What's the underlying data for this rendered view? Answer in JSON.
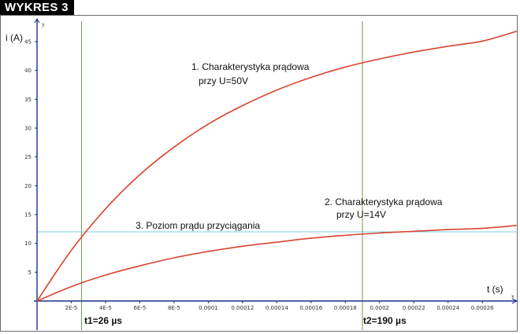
{
  "badge": "WYKRES 3",
  "chart_data": {
    "type": "line",
    "ylabel": "i (A)",
    "xlabel": "t (s)",
    "x_axis_name": "x",
    "y_axis_name": "y",
    "xlim": [
      0,
      0.000282
    ],
    "ylim": [
      0,
      48
    ],
    "grid": false,
    "x_ticks": [
      2e-05,
      4e-05,
      6e-05,
      8e-05,
      0.0001,
      0.00012,
      0.00014,
      0.00016,
      0.00018,
      0.0002,
      0.00022,
      0.00024,
      0.00026
    ],
    "x_tick_labels": [
      "2E-5",
      "4E-5",
      "6E-5",
      "8E-5",
      "0.0001",
      "0.00012",
      "0.00014",
      "0.00016",
      "0.00018",
      "0.0002",
      "0.00022",
      "0.00024",
      "0.00026"
    ],
    "y_ticks": [
      5,
      10,
      15,
      20,
      25,
      30,
      35,
      40,
      45
    ],
    "y_tick_labels": [
      "5",
      "10",
      "15",
      "20",
      "25",
      "30",
      "35",
      "40",
      "45"
    ],
    "series": [
      {
        "id": "curve-50v",
        "label_lines": [
          "1. Charakterystyka prądowa",
          "przy  U=50V"
        ],
        "color": "#d9442f",
        "x": [
          0,
          2e-05,
          4e-05,
          6e-05,
          8e-05,
          0.0001,
          0.00012,
          0.00014,
          0.00016,
          0.00018,
          0.0002,
          0.00022,
          0.00024,
          0.00026,
          0.00028
        ],
        "y": [
          0,
          8.8,
          16.0,
          21.9,
          26.7,
          30.7,
          33.9,
          36.6,
          38.8,
          40.6,
          42.0,
          43.2,
          44.2,
          45.1,
          46.8
        ]
      },
      {
        "id": "curve-14v",
        "label_lines": [
          "2. Charakterystyka prądowa",
          "przy  U=14V"
        ],
        "color": "#d9442f",
        "x": [
          0,
          2e-05,
          4e-05,
          6e-05,
          8e-05,
          0.0001,
          0.00012,
          0.00014,
          0.00016,
          0.00018,
          0.0002,
          0.00022,
          0.00024,
          0.00026,
          0.00028
        ],
        "y": [
          0,
          2.5,
          4.5,
          6.1,
          7.5,
          8.6,
          9.5,
          10.2,
          10.9,
          11.4,
          11.8,
          12.1,
          12.4,
          12.6,
          13.1
        ]
      }
    ],
    "threshold": {
      "label": "3. Poziom prądu przyciągania",
      "y": 12,
      "color": "#7fcfe0"
    },
    "markers": [
      {
        "label": "t1=26 µs",
        "x": 2.6e-05,
        "color": "#6f9a4a"
      },
      {
        "label": "t2=190 µs",
        "x": 0.00019,
        "color": "#6f9a4a"
      }
    ]
  }
}
